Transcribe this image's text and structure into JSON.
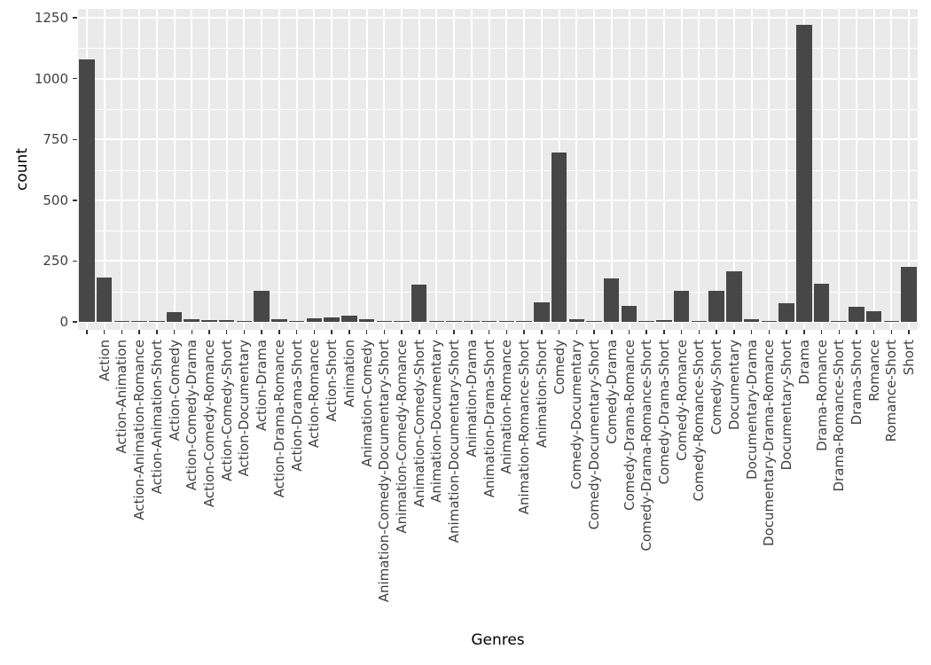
{
  "chart_data": {
    "type": "bar",
    "title": "",
    "xlabel": "Genres",
    "ylabel": "count",
    "ylim": [
      0,
      1250
    ],
    "yticks": [
      0,
      250,
      500,
      750,
      1000,
      1250
    ],
    "yticks_minor": [
      125,
      375,
      625,
      875,
      1125
    ],
    "grid": true,
    "legend_position": "none",
    "bar_color": "#474747",
    "panel_bg": "#EAEAEA",
    "gridline_color": "#ffffff",
    "tick_color": "#333333",
    "axis_text_color": "#404040",
    "categories": [
      "",
      "Action",
      "Action-Animation",
      "Action-Animation-Romance",
      "Action-Animation-Short",
      "Action-Comedy",
      "Action-Comedy-Drama",
      "Action-Comedy-Romance",
      "Action-Comedy-Short",
      "Action-Documentary",
      "Action-Drama",
      "Action-Drama-Romance",
      "Action-Drama-Short",
      "Action-Romance",
      "Action-Short",
      "Animation",
      "Animation-Comedy",
      "Animation-Comedy-Documentary-Short",
      "Animation-Comedy-Romance",
      "Animation-Comedy-Short",
      "Animation-Documentary",
      "Animation-Documentary-Short",
      "Animation-Drama",
      "Animation-Drama-Short",
      "Animation-Romance",
      "Animation-Romance-Short",
      "Animation-Short",
      "Comedy",
      "Comedy-Documentary",
      "Comedy-Documentary-Short",
      "Comedy-Drama",
      "Comedy-Drama-Romance",
      "Comedy-Drama-Romance-Short",
      "Comedy-Drama-Short",
      "Comedy-Romance",
      "Comedy-Romance-Short",
      "Comedy-Short",
      "Documentary",
      "Documentary-Drama",
      "Documentary-Drama-Romance",
      "Documentary-Short",
      "Drama",
      "Drama-Romance",
      "Drama-Romance-Short",
      "Drama-Short",
      "Romance",
      "Romance-Short",
      "Short"
    ],
    "values": [
      1077,
      181,
      1,
      1,
      1,
      41,
      11,
      9,
      9,
      2,
      126,
      11,
      3,
      13,
      17,
      26,
      11,
      1,
      1,
      153,
      1,
      1,
      1,
      1,
      1,
      1,
      81,
      695,
      10,
      2,
      179,
      66,
      1,
      7,
      126,
      2,
      129,
      208,
      10,
      2,
      77,
      1222,
      157,
      2,
      63,
      42,
      2,
      226
    ]
  }
}
